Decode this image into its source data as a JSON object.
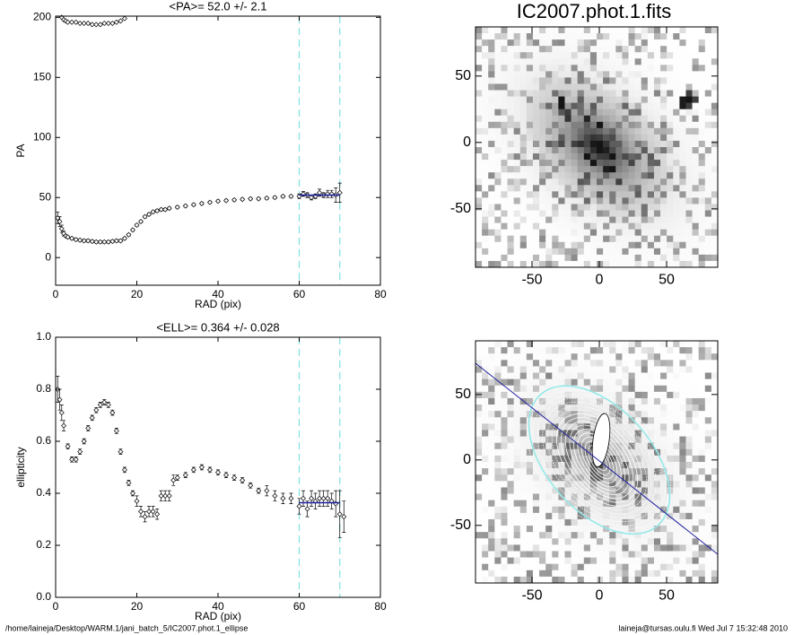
{
  "chart_data": [
    {
      "type": "scatter",
      "title": "<PA>=  52.0 +/-   2.1",
      "xlabel": "RAD (pix)",
      "ylabel": "PA",
      "x": [
        0.5,
        1,
        1.5,
        2,
        2.5,
        3,
        4,
        5,
        6,
        7,
        8,
        9,
        10,
        11,
        12,
        13,
        14,
        15,
        16,
        17,
        18,
        19,
        20,
        21,
        22,
        23,
        24,
        25,
        26,
        27,
        28,
        30,
        32,
        34,
        36,
        38,
        40,
        42,
        44,
        46,
        48,
        50,
        52,
        54,
        56,
        58,
        60,
        61,
        62,
        63,
        64,
        65,
        66,
        67,
        68,
        69,
        70
      ],
      "series": [
        {
          "color": "#000000",
          "values": [
            33,
            30,
            24,
            20,
            18,
            17,
            16,
            15,
            14.5,
            14,
            14,
            13.5,
            13,
            13,
            13,
            13,
            13.5,
            14,
            14,
            16,
            19,
            23,
            27,
            30,
            34,
            36,
            38,
            39,
            40,
            40,
            41,
            42,
            43,
            44,
            45,
            46,
            47,
            47.5,
            48,
            48.5,
            49,
            49,
            49.5,
            50,
            51,
            51,
            51,
            53,
            52,
            50,
            51,
            54,
            52,
            53,
            53,
            52,
            54
          ],
          "errors": [
            5,
            4,
            3,
            2,
            1,
            1,
            1,
            1,
            1,
            1,
            1,
            1,
            1,
            1,
            1,
            1,
            1,
            1,
            1,
            1,
            1,
            1,
            1,
            1,
            1,
            1,
            1,
            1,
            1,
            1,
            1,
            1,
            1,
            1,
            1,
            1,
            1,
            1,
            1,
            1,
            1,
            1,
            1,
            1,
            1,
            1,
            2,
            2,
            2,
            2,
            2,
            3,
            2,
            3,
            3,
            6,
            8
          ]
        },
        {
          "color": "#000000",
          "values": [
            null,
            null,
            200,
            198,
            197,
            196,
            196,
            196,
            195,
            195,
            195,
            194,
            194,
            194,
            195,
            195,
            195,
            196,
            197,
            199,
            null,
            null,
            null,
            null,
            null,
            null,
            null,
            null,
            null,
            null,
            null,
            null,
            null,
            null,
            null,
            null,
            null,
            null,
            null,
            null,
            null,
            null,
            null,
            null,
            null,
            null,
            null,
            null,
            null,
            null,
            null,
            null,
            null,
            null,
            null,
            null,
            null
          ]
        }
      ],
      "xlim": [
        0,
        80
      ],
      "ylim": [
        -23,
        201
      ],
      "xticks": [
        0,
        20,
        40,
        60,
        80
      ],
      "yticks": [
        0,
        50,
        100,
        150,
        200
      ],
      "vlines": [
        60,
        70
      ],
      "vline_color": "#80e0e0",
      "fit": {
        "x": [
          60,
          70
        ],
        "value": 52.0,
        "color": "#2020a0"
      }
    },
    {
      "type": "image",
      "title": "IC2007.phot.1.fits",
      "contours": false,
      "xlim": [
        -92,
        88
      ],
      "ylim": [
        -94,
        87
      ],
      "xticks": [
        -50,
        0,
        50
      ],
      "yticks": [
        -50,
        0,
        50
      ]
    },
    {
      "type": "scatter",
      "title": "<ELL>= 0.364 +/-  0.028",
      "xlabel": "RAD (pix)",
      "ylabel": "ellipticity",
      "x": [
        0.5,
        1,
        1.5,
        2,
        3,
        4,
        5,
        6,
        7,
        8,
        9,
        10,
        11,
        12,
        13,
        14,
        15,
        16,
        17,
        18,
        19,
        20,
        21,
        22,
        23,
        24,
        25,
        26,
        27,
        28,
        29,
        30,
        32,
        34,
        36,
        38,
        40,
        42,
        44,
        46,
        48,
        50,
        52,
        54,
        56,
        58,
        60,
        61,
        62,
        63,
        64,
        65,
        66,
        67,
        68,
        69,
        70,
        71
      ],
      "series": [
        {
          "color": "#000000",
          "values": [
            0.8,
            0.76,
            0.71,
            0.66,
            0.58,
            0.53,
            0.53,
            0.56,
            0.6,
            0.65,
            0.69,
            0.72,
            0.74,
            0.75,
            0.74,
            0.71,
            0.64,
            0.56,
            0.49,
            0.44,
            0.4,
            0.37,
            0.33,
            0.31,
            0.33,
            0.33,
            0.32,
            0.39,
            0.39,
            0.39,
            0.45,
            0.46,
            0.47,
            0.49,
            0.5,
            0.49,
            0.48,
            0.47,
            0.46,
            0.45,
            0.43,
            0.41,
            0.41,
            0.39,
            0.38,
            0.38,
            0.35,
            0.38,
            0.34,
            0.38,
            0.37,
            0.38,
            0.38,
            0.38,
            0.37,
            0.36,
            0.32,
            0.31
          ],
          "errors": [
            0.05,
            0.04,
            0.03,
            0.02,
            0.01,
            0.01,
            0.01,
            0.01,
            0.01,
            0.01,
            0.01,
            0.01,
            0.01,
            0.01,
            0.01,
            0.01,
            0.01,
            0.01,
            0.01,
            0.01,
            0.01,
            0.02,
            0.02,
            0.02,
            0.02,
            0.02,
            0.02,
            0.02,
            0.02,
            0.02,
            0.02,
            0.01,
            0.01,
            0.01,
            0.01,
            0.01,
            0.01,
            0.01,
            0.01,
            0.01,
            0.01,
            0.01,
            0.02,
            0.02,
            0.02,
            0.02,
            0.03,
            0.03,
            0.03,
            0.03,
            0.03,
            0.03,
            0.03,
            0.03,
            0.03,
            0.05,
            0.09,
            0.06
          ]
        }
      ],
      "xlim": [
        0,
        80
      ],
      "ylim": [
        0,
        1
      ],
      "xticks": [
        0,
        20,
        40,
        60,
        80
      ],
      "yticks": [
        {
          "value": 0,
          "label": "0.0"
        },
        0.2,
        0.4,
        0.6,
        0.8,
        {
          "value": 1,
          "label": "1.0"
        }
      ],
      "vlines": [
        60,
        70
      ],
      "vline_color": "#80e0e0",
      "fit": {
        "x": [
          60,
          70
        ],
        "value": 0.364,
        "color": "#2020a0"
      }
    },
    {
      "type": "image",
      "contours": true,
      "xlim": [
        -92,
        88
      ],
      "ylim": [
        -94,
        91
      ],
      "xticks": [
        -50,
        0,
        50
      ],
      "yticks": [
        -50,
        0,
        50
      ]
    }
  ],
  "footer": {
    "left": "/home/laineja/Desktop/WARM.1/jani_batch_5/IC2007.phot.1_ellipse",
    "right": "laineja@tursas.oulu.fi  Wed Jul  7 15:32:48 2010"
  }
}
